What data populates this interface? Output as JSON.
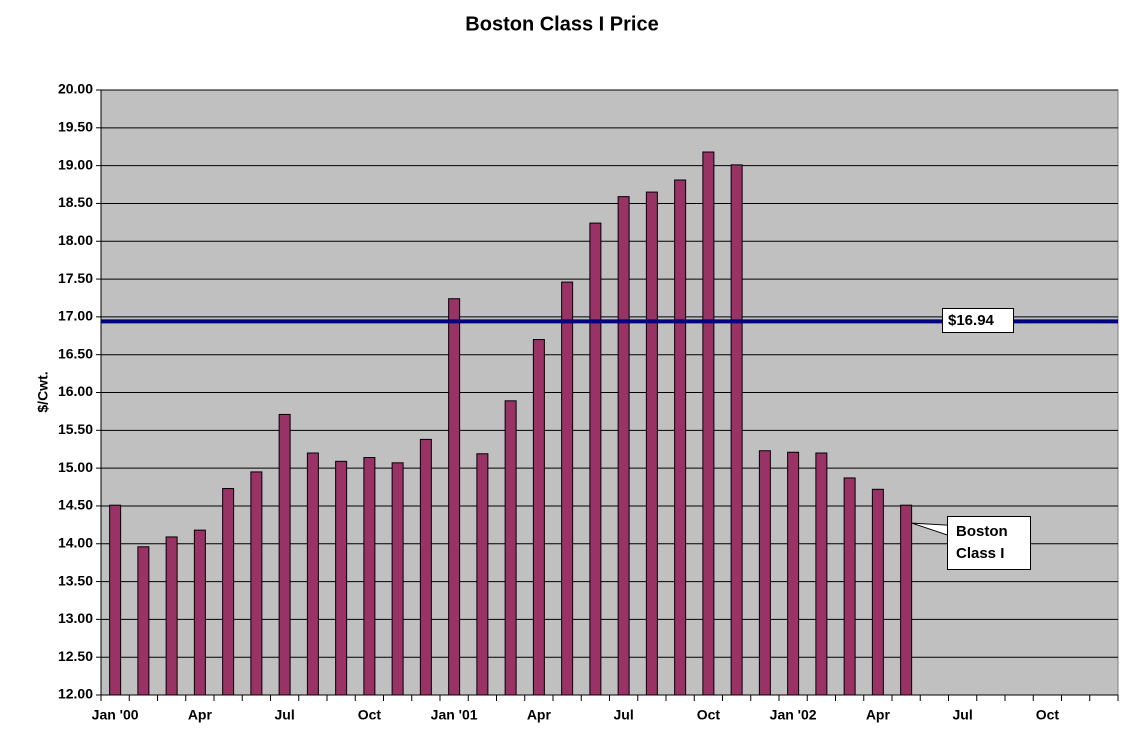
{
  "chart_data": {
    "type": "bar",
    "title": "Boston Class I Price",
    "y_label": "$/Cwt.",
    "categories": [
      "Jan '00",
      null,
      null,
      "Apr",
      null,
      null,
      "Jul",
      null,
      null,
      "Oct",
      null,
      null,
      "Jan '01",
      null,
      null,
      "Apr",
      null,
      null,
      "Jul",
      null,
      null,
      "Oct",
      null,
      null,
      "Jan '02",
      null,
      null,
      "Apr",
      null,
      null,
      "Jul",
      null,
      null,
      "Oct",
      null,
      null
    ],
    "series": [
      {
        "name": "Boston Class I",
        "color": "#993366",
        "values": [
          14.51,
          13.96,
          14.09,
          14.18,
          14.73,
          14.95,
          15.71,
          15.2,
          15.09,
          15.14,
          15.07,
          15.38,
          17.24,
          15.19,
          15.89,
          16.7,
          17.46,
          18.24,
          18.59,
          18.65,
          18.81,
          19.18,
          19.01,
          15.23,
          15.21,
          15.2,
          14.87,
          14.72,
          14.51,
          null,
          null,
          null,
          null,
          null,
          null,
          null
        ]
      }
    ],
    "reference_line": {
      "value": 16.94,
      "label": "$16.94",
      "color": "#000080"
    },
    "ylim": [
      12,
      20
    ],
    "yticks": [
      {
        "value": 12,
        "label": "12.00"
      },
      {
        "value": 12.5,
        "label": "12.50"
      },
      {
        "value": 13,
        "label": "13.00"
      },
      {
        "value": 13.5,
        "label": "13.50"
      },
      {
        "value": 14,
        "label": "14.00"
      },
      {
        "value": 14.5,
        "label": "14.50"
      },
      {
        "value": 15,
        "label": "15.00"
      },
      {
        "value": 15.5,
        "label": "15.50"
      },
      {
        "value": 16,
        "label": "16.00"
      },
      {
        "value": 16.5,
        "label": "16.50"
      },
      {
        "value": 17,
        "label": "17.00"
      },
      {
        "value": 17.5,
        "label": "17.50"
      },
      {
        "value": 18,
        "label": "18.00"
      },
      {
        "value": 18.5,
        "label": "18.50"
      },
      {
        "value": 19,
        "label": "19.00"
      },
      {
        "value": 19.5,
        "label": "19.50"
      },
      {
        "value": 20,
        "label": "20.00"
      }
    ],
    "grid": true,
    "plot_background": "#c0c0c0"
  }
}
